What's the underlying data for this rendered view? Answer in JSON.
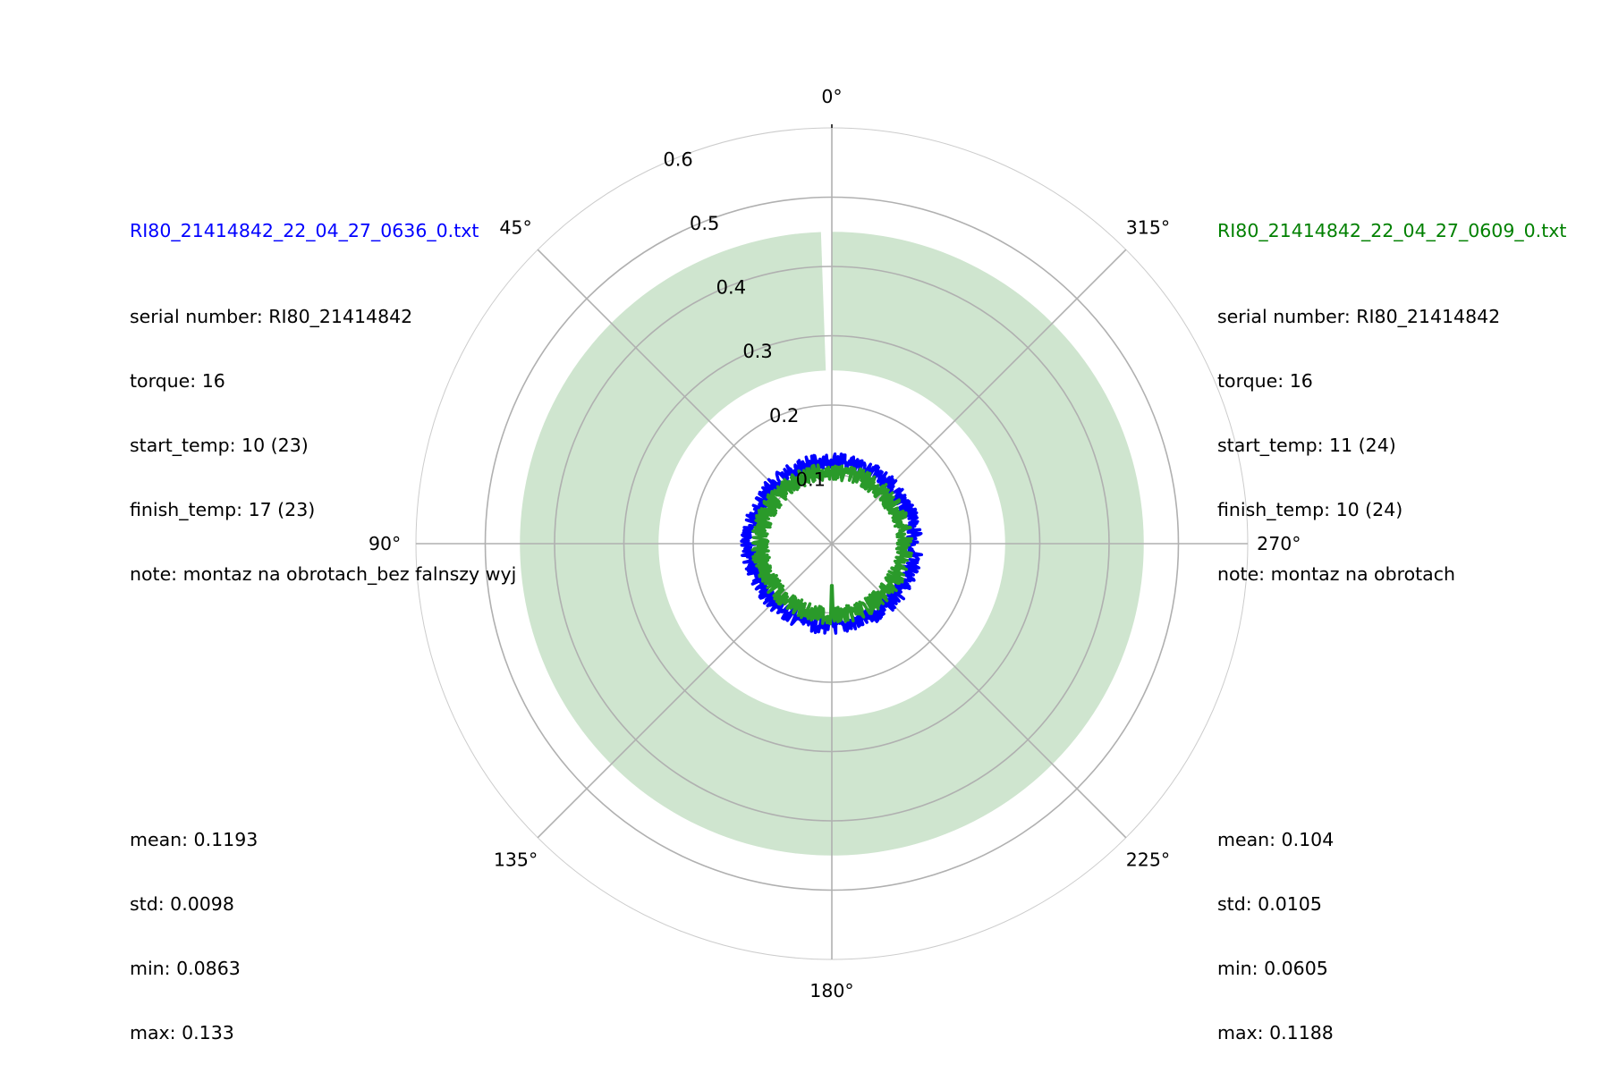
{
  "chart_data": {
    "type": "polar-line",
    "theta_direction": "counterclockwise",
    "theta_zero": "top",
    "rlim": [
      0,
      0.6
    ],
    "r_ticks": [
      "0.1",
      "0.2",
      "0.3",
      "0.4",
      "0.5",
      "0.6"
    ],
    "theta_ticks": [
      "0°",
      "45°",
      "90°",
      "135°",
      "180°",
      "225°",
      "270°",
      "315°"
    ],
    "tolerance_band": {
      "r_min": 0.25,
      "r_max": 0.45,
      "gap_degrees": [
        0,
        2
      ],
      "color": "#cfe5cf"
    },
    "series": [
      {
        "name": "RI80_21414842_22_04_27_0636_0.txt",
        "color": "#0000ff",
        "mean": 0.1193,
        "std": 0.0098,
        "min": 0.0863,
        "max": 0.133
      },
      {
        "name": "RI80_21414842_22_04_27_0609_0.txt",
        "color": "#2a9a2a",
        "mean": 0.104,
        "std": 0.0105,
        "min": 0.0605,
        "max": 0.1188
      }
    ]
  },
  "left_panel": {
    "filename": "RI80_21414842_22_04_27_0636_0.txt",
    "filename_color": "#0000ff",
    "serial": "serial number: RI80_21414842",
    "torque": "torque: 16",
    "start_temp": "start_temp: 10 (23)",
    "finish_temp": "finish_temp: 17 (23)",
    "note": "note: montaz na obrotach_bez falnszy wyj",
    "mean": "mean: 0.1193",
    "std": "std: 0.0098",
    "min": "min: 0.0863",
    "max": "max: 0.133"
  },
  "right_panel": {
    "filename": "RI80_21414842_22_04_27_0609_0.txt",
    "filename_color": "#008000",
    "serial": "serial number: RI80_21414842",
    "torque": "torque: 16",
    "start_temp": "start_temp: 11 (24)",
    "finish_temp": "finish_temp: 10 (24)",
    "note": "note: montaz na obrotach",
    "mean": "mean: 0.104",
    "std": "std: 0.0105",
    "min": "min: 0.0605",
    "max": "max: 0.1188"
  }
}
